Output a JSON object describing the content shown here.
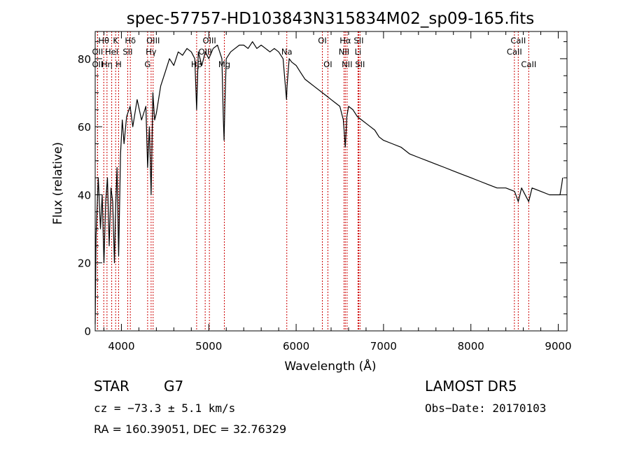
{
  "chart_data": {
    "type": "line",
    "title": "spec-57757-HD103843N315834M02_sp09-165.fits",
    "xlabel": "Wavelength (Å)",
    "ylabel": "Flux (relative)",
    "xlim": [
      3700,
      9100
    ],
    "ylim": [
      0,
      88
    ],
    "x_ticks": [
      4000,
      5000,
      6000,
      7000,
      8000,
      9000
    ],
    "y_ticks": [
      0,
      20,
      40,
      60,
      80
    ],
    "grid": false,
    "line_color": "#000000",
    "marker_color": "#cc0000",
    "series": [
      {
        "x": [
          3700,
          3705,
          3710,
          3720,
          3735,
          3760,
          3780,
          3800,
          3820,
          3840,
          3860,
          3880,
          3900,
          3920,
          3934,
          3950,
          3968,
          3990,
          4010,
          4030,
          4060,
          4100,
          4130,
          4180,
          4230,
          4280,
          4300,
          4320,
          4340,
          4360,
          4380,
          4400,
          4450,
          4500,
          4550,
          4600,
          4650,
          4700,
          4750,
          4800,
          4840,
          4861,
          4880,
          4920,
          4960,
          5000,
          5050,
          5100,
          5150,
          5167,
          5175,
          5184,
          5200,
          5250,
          5300,
          5350,
          5400,
          5450,
          5500,
          5550,
          5600,
          5650,
          5700,
          5750,
          5800,
          5850,
          5890,
          5896,
          5920,
          5950,
          6000,
          6050,
          6100,
          6150,
          6200,
          6250,
          6300,
          6350,
          6400,
          6450,
          6500,
          6540,
          6563,
          6580,
          6600,
          6650,
          6700,
          6750,
          6800,
          6850,
          6900,
          6950,
          7000,
          7100,
          7200,
          7300,
          7400,
          7500,
          7600,
          7700,
          7800,
          7900,
          8000,
          8100,
          8200,
          8300,
          8400,
          8500,
          8542,
          8580,
          8662,
          8700,
          8800,
          8900,
          8950,
          8990,
          9020,
          9040,
          9050
        ],
        "y": [
          2,
          15,
          28,
          35,
          45,
          30,
          40,
          20,
          38,
          45,
          25,
          42,
          38,
          20,
          36,
          48,
          22,
          52,
          62,
          55,
          63,
          66,
          60,
          68,
          62,
          66,
          48,
          60,
          40,
          70,
          62,
          64,
          72,
          76,
          80,
          78,
          82,
          81,
          83,
          82,
          80,
          65,
          82,
          78,
          82,
          80,
          83,
          84,
          80,
          62,
          56,
          66,
          80,
          82,
          83,
          84,
          84,
          83,
          85,
          83,
          84,
          83,
          82,
          83,
          82,
          80,
          68,
          72,
          80,
          79,
          78,
          76,
          74,
          73,
          72,
          71,
          70,
          69,
          68,
          67,
          66,
          62,
          54,
          63,
          66,
          65,
          63,
          62,
          61,
          60,
          59,
          57,
          56,
          55,
          54,
          52,
          51,
          50,
          49,
          48,
          47,
          46,
          45,
          44,
          43,
          42,
          42,
          41,
          38,
          42,
          38,
          42,
          41,
          40,
          40,
          40,
          40,
          43,
          45
        ]
      }
    ],
    "lines": [
      {
        "wave": 3727,
        "label": "OII",
        "row": 2
      },
      {
        "wave": 3727,
        "label": "OII",
        "row": 3
      },
      {
        "wave": 3798,
        "label": "Hθ",
        "row": 1
      },
      {
        "wave": 3835,
        "label": "Hη",
        "row": 3
      },
      {
        "wave": 3889,
        "label": "HeI",
        "row": 2
      },
      {
        "wave": 3934,
        "label": "K",
        "row": 1
      },
      {
        "wave": 3968,
        "label": "H",
        "row": 3
      },
      {
        "wave": 4072,
        "label": "SII",
        "row": 2
      },
      {
        "wave": 4102,
        "label": "Hδ",
        "row": 1
      },
      {
        "wave": 4300,
        "label": "G",
        "row": 3
      },
      {
        "wave": 4340,
        "label": "Hγ",
        "row": 2
      },
      {
        "wave": 4363,
        "label": "OIII",
        "row": 1
      },
      {
        "wave": 4861,
        "label": "Hβ",
        "row": 3
      },
      {
        "wave": 4959,
        "label": "OIII",
        "row": 2
      },
      {
        "wave": 5007,
        "label": "OIII",
        "row": 1
      },
      {
        "wave": 5178,
        "label": "Mg",
        "row": 3
      },
      {
        "wave": 5893,
        "label": "Na",
        "row": 2
      },
      {
        "wave": 6300,
        "label": "OI",
        "row": 1
      },
      {
        "wave": 6363,
        "label": "OI",
        "row": 3
      },
      {
        "wave": 6548,
        "label": "NII",
        "row": 2
      },
      {
        "wave": 6563,
        "label": "Hα",
        "row": 1
      },
      {
        "wave": 6583,
        "label": "NII",
        "row": 3
      },
      {
        "wave": 6708,
        "label": "Li",
        "row": 2
      },
      {
        "wave": 6716,
        "label": "SII",
        "row": 1
      },
      {
        "wave": 6731,
        "label": "SII",
        "row": 3
      },
      {
        "wave": 8498,
        "label": "CaII",
        "row": 2
      },
      {
        "wave": 8542,
        "label": "CaII",
        "row": 1
      },
      {
        "wave": 8662,
        "label": "CaII",
        "row": 3
      }
    ]
  },
  "info": {
    "object_class": "STAR",
    "subclass": "G7",
    "survey": "LAMOST DR5",
    "cz": "cz = −73.3 ± 5.1 km/s",
    "obs_date": "Obs−Date: 20170103",
    "coords": "RA = 160.39051, DEC =  32.76329"
  }
}
